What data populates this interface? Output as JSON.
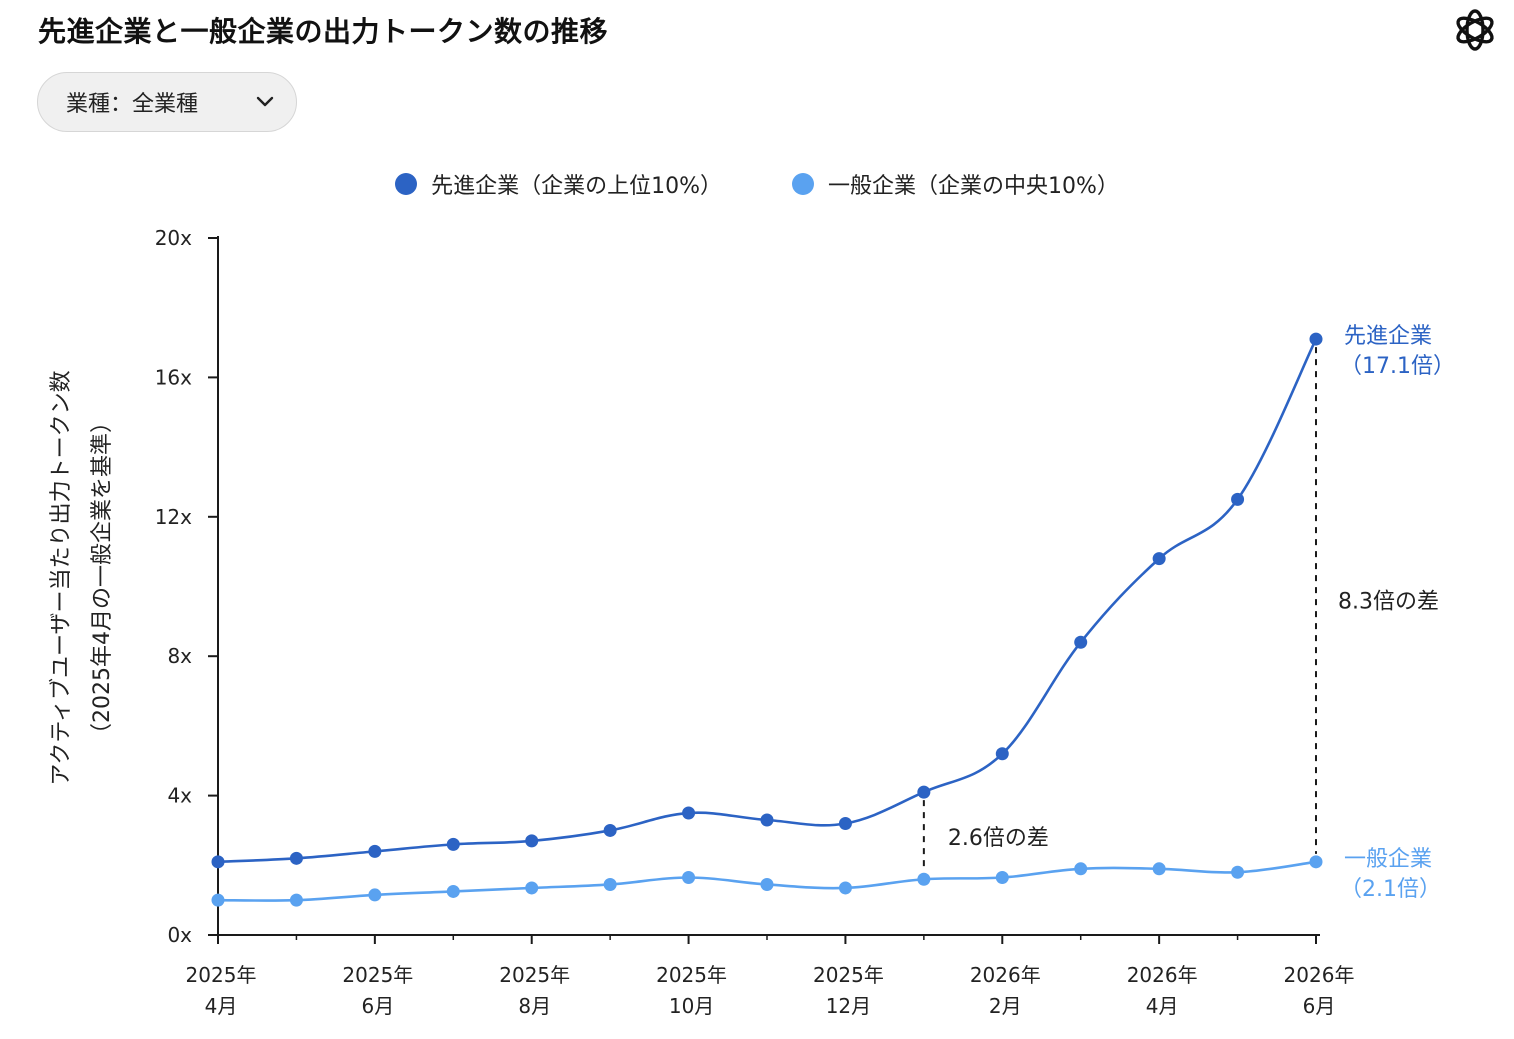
{
  "title": "先進企業と一般企業の出力トークン数の推移",
  "logo_icon": "openai-logo-icon",
  "filter": {
    "label": "業種：全業種",
    "icon": "chevron-down-icon"
  },
  "colors": {
    "advanced": "#2c63c4",
    "general": "#5aa2f0",
    "axis": "#1a1a1a",
    "text": "#222222"
  },
  "chart_data": {
    "type": "line",
    "ylabel_lines": [
      "アクティブユーザー当たり出力トークン数",
      "（2025年4月の一般企業を基準）"
    ],
    "y_ticks": [
      "0x",
      "4x",
      "8x",
      "12x",
      "16x",
      "20x"
    ],
    "ylim": [
      0,
      20
    ],
    "x_tick_labels": [
      [
        "2025年",
        "4月"
      ],
      [
        "2025年",
        "6月"
      ],
      [
        "2025年",
        "8月"
      ],
      [
        "2025年",
        "10月"
      ],
      [
        "2025年",
        "12月"
      ],
      [
        "2026年",
        "2月"
      ],
      [
        "2026年",
        "4月"
      ],
      [
        "2026年",
        "6月"
      ]
    ],
    "x": [
      "2025-04",
      "2025-05",
      "2025-06",
      "2025-07",
      "2025-08",
      "2025-09",
      "2025-10",
      "2025-11",
      "2025-12",
      "2026-01",
      "2026-02",
      "2026-03",
      "2026-04",
      "2026-05",
      "2026-06"
    ],
    "series": [
      {
        "name": "先進企業（企業の上位10%）",
        "color": "#2c63c4",
        "values": [
          2.1,
          2.2,
          2.4,
          2.6,
          2.7,
          3.0,
          3.5,
          3.3,
          3.2,
          4.1,
          5.2,
          8.4,
          10.8,
          12.5,
          17.1
        ]
      },
      {
        "name": "一般企業（企業の中央10%）",
        "color": "#5aa2f0",
        "values": [
          1.0,
          1.0,
          1.15,
          1.25,
          1.35,
          1.45,
          1.65,
          1.45,
          1.35,
          1.6,
          1.65,
          1.9,
          1.9,
          1.8,
          2.1
        ]
      }
    ],
    "annotations": [
      {
        "x": "2026-01",
        "text": "2.6倍の差"
      },
      {
        "x": "2026-06",
        "text": "8.3倍の差"
      }
    ],
    "end_labels": [
      {
        "series": 0,
        "lines": [
          "先進企業",
          "（17.1倍）"
        ]
      },
      {
        "series": 1,
        "lines": [
          "一般企業",
          "（2.1倍）"
        ]
      }
    ],
    "grid": false,
    "legend": "top-center"
  }
}
